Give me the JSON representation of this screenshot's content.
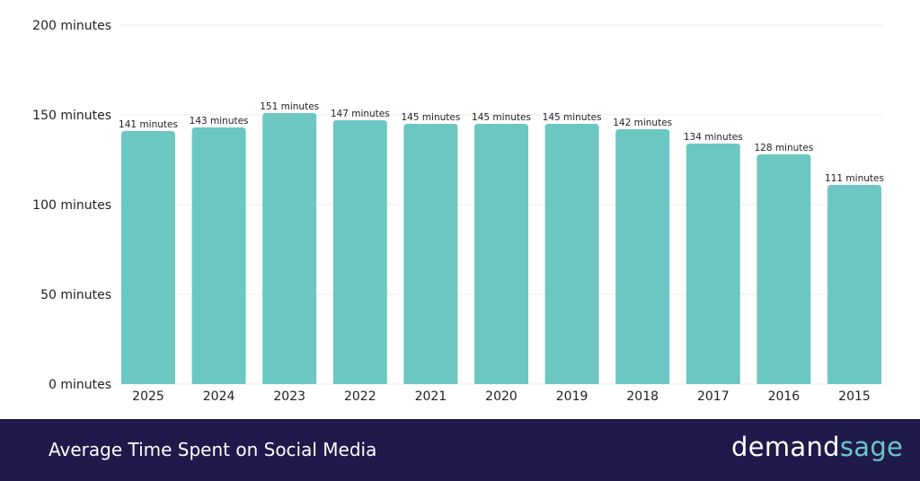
{
  "chart_data": {
    "type": "bar",
    "categories": [
      "2025",
      "2024",
      "2023",
      "2022",
      "2021",
      "2020",
      "2019",
      "2018",
      "2017",
      "2016",
      "2015"
    ],
    "values": [
      141,
      143,
      151,
      147,
      145,
      145,
      145,
      142,
      134,
      128,
      111
    ],
    "data_labels": [
      "141 minutes",
      "143 minutes",
      "151 minutes",
      "147 minutes",
      "145 minutes",
      "145 minutes",
      "145 minutes",
      "142 minutes",
      "134 minutes",
      "128 minutes",
      "111 minutes"
    ],
    "yticks": [
      0,
      50,
      100,
      150,
      200
    ],
    "ytick_labels": [
      "0 minutes",
      "50 minutes",
      "100 minutes",
      "150 minutes",
      "200 minutes"
    ],
    "ylim": [
      0,
      200
    ],
    "grid": true,
    "bar_color": "#6cc7c2",
    "title": "Average Time Spent on Social Media"
  },
  "footer": {
    "title": "Average Time Spent on Social Media",
    "logo_part1": "demand",
    "logo_part2": "sage",
    "background": "#1f1a4b"
  }
}
